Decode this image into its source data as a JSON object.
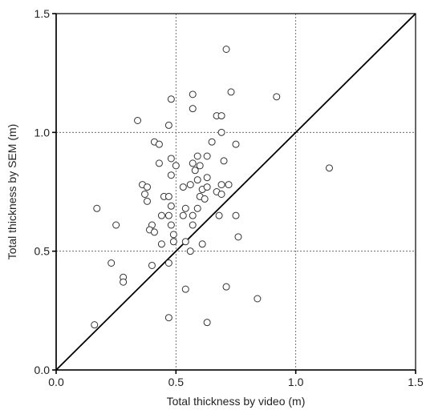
{
  "chart_data": {
    "type": "scatter",
    "title": "",
    "xlabel": "Total thickness by video (m)",
    "ylabel": "Total thickness by SEM (m)",
    "xlim": [
      0.0,
      1.5
    ],
    "ylim": [
      0.0,
      1.5
    ],
    "xticks": [
      "0.0",
      "0.5",
      "1.0",
      "1.5"
    ],
    "yticks": [
      "0.0",
      "0.5",
      "1.0",
      "1.5"
    ],
    "grid": true,
    "reference_line": {
      "x": [
        0.0,
        1.5
      ],
      "y": [
        0.0,
        1.5
      ]
    },
    "points": [
      [
        0.71,
        1.35
      ],
      [
        0.73,
        1.17
      ],
      [
        0.57,
        1.16
      ],
      [
        0.92,
        1.15
      ],
      [
        0.48,
        1.14
      ],
      [
        0.57,
        1.1
      ],
      [
        0.67,
        1.07
      ],
      [
        0.69,
        1.07
      ],
      [
        0.34,
        1.05
      ],
      [
        0.47,
        1.03
      ],
      [
        0.69,
        1.0
      ],
      [
        0.41,
        0.96
      ],
      [
        0.43,
        0.95
      ],
      [
        0.65,
        0.96
      ],
      [
        0.75,
        0.95
      ],
      [
        0.63,
        0.9
      ],
      [
        0.59,
        0.9
      ],
      [
        0.48,
        0.89
      ],
      [
        0.43,
        0.87
      ],
      [
        0.57,
        0.87
      ],
      [
        0.5,
        0.86
      ],
      [
        0.6,
        0.86
      ],
      [
        0.58,
        0.84
      ],
      [
        0.7,
        0.88
      ],
      [
        1.14,
        0.85
      ],
      [
        0.48,
        0.82
      ],
      [
        0.59,
        0.8
      ],
      [
        0.63,
        0.81
      ],
      [
        0.56,
        0.78
      ],
      [
        0.69,
        0.78
      ],
      [
        0.72,
        0.78
      ],
      [
        0.36,
        0.78
      ],
      [
        0.38,
        0.77
      ],
      [
        0.53,
        0.77
      ],
      [
        0.61,
        0.76
      ],
      [
        0.63,
        0.77
      ],
      [
        0.67,
        0.75
      ],
      [
        0.37,
        0.74
      ],
      [
        0.69,
        0.74
      ],
      [
        0.45,
        0.73
      ],
      [
        0.47,
        0.73
      ],
      [
        0.6,
        0.73
      ],
      [
        0.62,
        0.72
      ],
      [
        0.38,
        0.71
      ],
      [
        0.48,
        0.69
      ],
      [
        0.17,
        0.68
      ],
      [
        0.54,
        0.68
      ],
      [
        0.59,
        0.68
      ],
      [
        0.44,
        0.65
      ],
      [
        0.47,
        0.65
      ],
      [
        0.53,
        0.65
      ],
      [
        0.57,
        0.65
      ],
      [
        0.68,
        0.65
      ],
      [
        0.75,
        0.65
      ],
      [
        0.25,
        0.61
      ],
      [
        0.4,
        0.61
      ],
      [
        0.39,
        0.59
      ],
      [
        0.48,
        0.61
      ],
      [
        0.57,
        0.61
      ],
      [
        0.41,
        0.58
      ],
      [
        0.49,
        0.57
      ],
      [
        0.76,
        0.56
      ],
      [
        0.44,
        0.53
      ],
      [
        0.54,
        0.54
      ],
      [
        0.49,
        0.54
      ],
      [
        0.61,
        0.53
      ],
      [
        0.56,
        0.5
      ],
      [
        0.23,
        0.45
      ],
      [
        0.4,
        0.44
      ],
      [
        0.47,
        0.45
      ],
      [
        0.28,
        0.39
      ],
      [
        0.28,
        0.37
      ],
      [
        0.54,
        0.34
      ],
      [
        0.71,
        0.35
      ],
      [
        0.84,
        0.3
      ],
      [
        0.47,
        0.22
      ],
      [
        0.63,
        0.2
      ],
      [
        0.16,
        0.19
      ]
    ]
  }
}
